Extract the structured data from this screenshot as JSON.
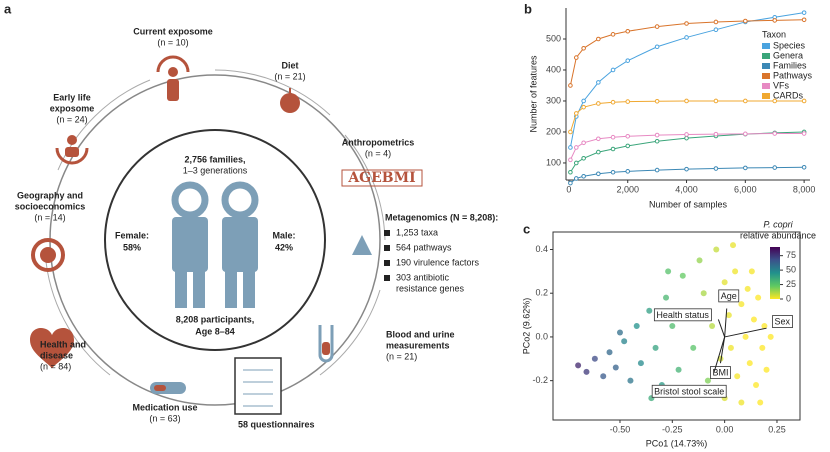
{
  "panel_a": {
    "letter": "a",
    "centre": {
      "families": "2,756 families,",
      "generations": "1–3 generations",
      "female": "Female:",
      "female_pct": "58%",
      "male": "Male:",
      "male_pct": "42%",
      "participants": "8,208 participants,",
      "age": "Age 8–84"
    },
    "factors": [
      {
        "lines": [
          "Current exposome"
        ],
        "n": "(n = 10)"
      },
      {
        "lines": [
          "Diet"
        ],
        "n": "(n = 21)"
      },
      {
        "lines": [
          "Early life",
          "exposome"
        ],
        "n": "(n = 24)"
      },
      {
        "lines": [
          "Anthropometrics"
        ],
        "n": "(n = 4)"
      },
      {
        "lines": [
          "Geography and",
          "socioeconomics"
        ],
        "n": "(n = 14)"
      },
      {
        "lines": [
          "Blood and urine",
          "measurements"
        ],
        "n": "(n = 21)"
      },
      {
        "lines": [
          "Health and",
          "disease"
        ],
        "n": "(n = 84)"
      },
      {
        "lines": [
          "Medication use"
        ],
        "n": "(n = 63)"
      }
    ],
    "metagenomics": {
      "title": "Metagenomics (N = 8,208):",
      "items": [
        [
          "1,253 taxa"
        ],
        [
          "564 pathways"
        ],
        [
          "190 virulence factors"
        ],
        [
          "303 antibiotic",
          "resistance genes"
        ]
      ]
    },
    "questionnaires": "58 questionnaires",
    "icon_text": "AGEBMI"
  },
  "chart_data": [
    {
      "type": "line",
      "letter": "b",
      "xlabel": "Number of samples",
      "ylabel": "Number of features",
      "x": [
        50,
        250,
        500,
        1000,
        1500,
        2000,
        3000,
        4000,
        5000,
        6000,
        7000,
        8000
      ],
      "xlim": [
        -100,
        8200
      ],
      "ylim": [
        45,
        600
      ],
      "xticks": [
        0,
        {
          "value": 2000,
          "label": "2,000"
        },
        {
          "value": 4000,
          "label": "4,000"
        },
        {
          "value": 6000,
          "label": "6,000"
        },
        {
          "value": 8000,
          "label": "8,000"
        }
      ],
      "yticks": [
        100,
        200,
        300,
        400,
        500
      ],
      "legend_title": "Taxon",
      "legend": "right",
      "series": [
        {
          "name": "Species",
          "color": "#4aa3df",
          "values": [
            150,
            250,
            300,
            360,
            400,
            430,
            475,
            505,
            530,
            555,
            570,
            585
          ]
        },
        {
          "name": "Genera",
          "color": "#3aa57a",
          "values": [
            70,
            100,
            115,
            135,
            145,
            155,
            170,
            180,
            187,
            193,
            197,
            200
          ]
        },
        {
          "name": "Families",
          "color": "#3c88b5",
          "values": [
            35,
            50,
            57,
            65,
            70,
            73,
            77,
            80,
            82,
            84,
            85,
            86
          ]
        },
        {
          "name": "Pathways",
          "color": "#d9742b",
          "values": [
            350,
            440,
            470,
            500,
            515,
            525,
            540,
            550,
            555,
            558,
            560,
            562
          ]
        },
        {
          "name": "VFs",
          "color": "#e78ac3",
          "values": [
            110,
            150,
            165,
            178,
            183,
            186,
            190,
            192,
            193,
            194,
            195,
            195
          ]
        },
        {
          "name": "CARDs",
          "color": "#f0a830",
          "values": [
            200,
            260,
            280,
            292,
            296,
            298,
            299,
            300,
            300,
            300,
            300,
            300
          ]
        }
      ]
    },
    {
      "type": "scatter",
      "letter": "c",
      "xlabel": "PCo1 (14.73%)",
      "ylabel": "PCo2 (9.62%)",
      "xlim": [
        -0.82,
        0.36
      ],
      "ylim": [
        -0.38,
        0.48
      ],
      "xticks": [
        {
          "value": -0.5,
          "label": "-0.50"
        },
        {
          "value": -0.25,
          "label": "-0.25"
        },
        {
          "value": 0,
          "label": "0.00"
        },
        {
          "value": 0.25,
          "label": "0.25"
        }
      ],
      "yticks": [
        -0.2,
        {
          "value": 0,
          "label": "0.0"
        },
        0.2,
        0.4
      ],
      "x": [
        -0.7,
        -0.66,
        -0.62,
        -0.58,
        -0.55,
        -0.52,
        -0.48,
        -0.45,
        -0.42,
        -0.4,
        -0.36,
        -0.33,
        -0.3,
        -0.28,
        -0.25,
        -0.22,
        -0.2,
        -0.18,
        -0.15,
        -0.12,
        -0.1,
        -0.08,
        -0.06,
        -0.04,
        -0.02,
        0.0,
        0.0,
        0.02,
        0.03,
        0.05,
        0.06,
        0.08,
        0.08,
        0.1,
        0.11,
        0.12,
        0.14,
        0.15,
        0.16,
        0.18,
        0.19,
        0.2,
        0.22,
        -0.35,
        -0.5,
        -0.27,
        0.04,
        0.13,
        0.17,
        -0.14
      ],
      "y": [
        -0.13,
        -0.16,
        -0.1,
        -0.18,
        -0.07,
        -0.14,
        -0.02,
        -0.2,
        0.05,
        -0.12,
        0.12,
        -0.05,
        -0.22,
        0.18,
        0.05,
        -0.15,
        0.28,
        0.1,
        -0.05,
        0.35,
        0.2,
        -0.2,
        0.05,
        0.4,
        -0.1,
        0.25,
        -0.28,
        0.1,
        -0.05,
        0.3,
        -0.18,
        0.15,
        -0.3,
        0.0,
        0.22,
        -0.12,
        0.08,
        -0.22,
        0.18,
        -0.05,
        0.05,
        -0.15,
        0.0,
        -0.28,
        0.02,
        0.3,
        0.42,
        0.3,
        -0.3,
        -0.25
      ],
      "abundance": [
        80,
        75,
        70,
        65,
        60,
        62,
        50,
        55,
        45,
        48,
        40,
        38,
        42,
        30,
        28,
        32,
        22,
        20,
        25,
        15,
        12,
        18,
        10,
        8,
        6,
        4,
        5,
        3,
        2,
        2,
        1,
        1,
        2,
        0,
        1,
        0,
        0,
        0,
        0,
        0,
        0,
        0,
        0,
        35,
        58,
        26,
        3,
        1,
        0,
        16
      ],
      "colorbar_title": [
        "P. copri",
        "relative abundance"
      ],
      "colorbar_lim": [
        0,
        90
      ],
      "colorbar_ticks": [
        0,
        25,
        50,
        75
      ],
      "colormap": [
        "#fde725",
        "#5ec962",
        "#21918c",
        "#3b528b",
        "#440154"
      ],
      "arrows": [
        {
          "label": "Age",
          "x": 0.01,
          "y": 0.13
        },
        {
          "label": "Health status",
          "x": -0.03,
          "y": 0.08
        },
        {
          "label": "Sex",
          "x": 0.2,
          "y": 0.04
        },
        {
          "label": "BMI",
          "x": -0.02,
          "y": -0.12
        },
        {
          "label": "Bristol stool scale",
          "x": -0.05,
          "y": -0.16
        }
      ]
    }
  ]
}
